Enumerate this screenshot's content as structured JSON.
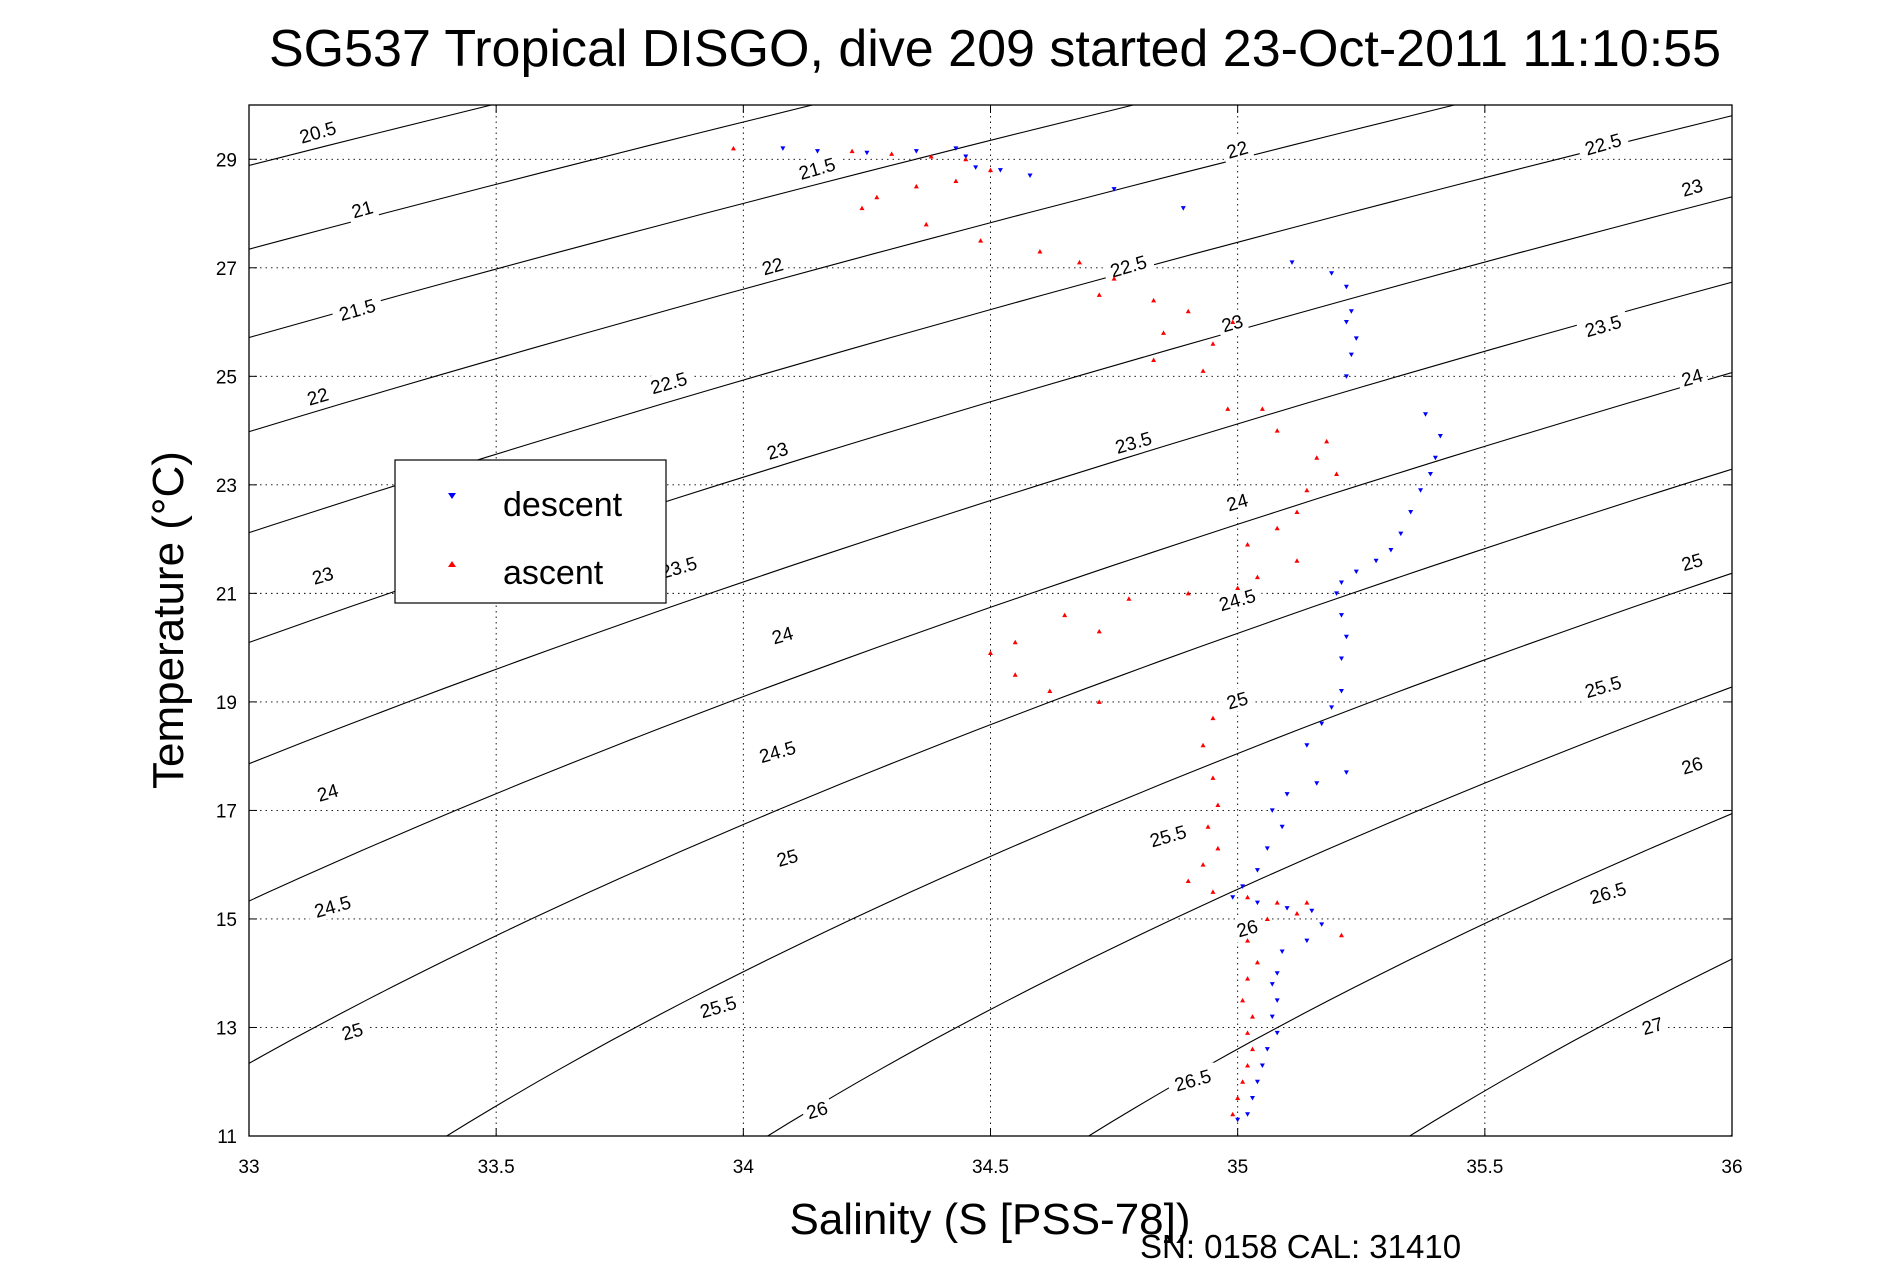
{
  "chart_data": {
    "type": "scatter",
    "title": "SG537 Tropical DISGO, dive 209 started 23-Oct-2011 11:10:55",
    "xlabel": "Salinity (S [PSS-78])",
    "ylabel": "Temperature (°C)",
    "xlim": [
      33,
      36
    ],
    "ylim": [
      11,
      30
    ],
    "x_ticks": [
      33,
      33.5,
      34,
      34.5,
      35,
      35.5,
      36
    ],
    "x_tick_labels": [
      "33",
      "33.5",
      "34",
      "34.5",
      "35",
      "35.5",
      "36"
    ],
    "y_ticks": [
      11,
      13,
      15,
      17,
      19,
      21,
      23,
      25,
      27,
      29
    ],
    "y_tick_labels": [
      "11",
      "13",
      "15",
      "17",
      "19",
      "21",
      "23",
      "25",
      "27",
      "29"
    ],
    "grid": true,
    "legend_position": "center-left",
    "footer": "SN: 0158  CAL: 31410",
    "density_contours": {
      "levels": [
        20.5,
        21,
        21.5,
        22,
        22.5,
        23,
        23.5,
        24,
        24.5,
        25,
        25.5,
        26,
        26.5,
        27
      ],
      "color": "#000000",
      "labels": [
        {
          "text": "20.5",
          "x": 33.14,
          "y": 29.47
        },
        {
          "text": "21",
          "x": 33.23,
          "y": 28.05
        },
        {
          "text": "21.5",
          "x": 33.22,
          "y": 26.2
        },
        {
          "text": "22",
          "x": 33.14,
          "y": 24.6
        },
        {
          "text": "23",
          "x": 33.15,
          "y": 21.3
        },
        {
          "text": "24",
          "x": 33.16,
          "y": 17.3
        },
        {
          "text": "24.5",
          "x": 33.17,
          "y": 15.2
        },
        {
          "text": "25",
          "x": 33.21,
          "y": 12.9
        },
        {
          "text": "21.5",
          "x": 34.15,
          "y": 28.8
        },
        {
          "text": "22",
          "x": 34.06,
          "y": 27.0
        },
        {
          "text": "22.5",
          "x": 33.85,
          "y": 24.85
        },
        {
          "text": "23",
          "x": 34.07,
          "y": 23.6
        },
        {
          "text": "23.5",
          "x": 33.87,
          "y": 21.45
        },
        {
          "text": "24",
          "x": 34.08,
          "y": 20.2
        },
        {
          "text": "24.5",
          "x": 34.07,
          "y": 18.05
        },
        {
          "text": "25",
          "x": 34.09,
          "y": 16.1
        },
        {
          "text": "25.5",
          "x": 33.95,
          "y": 13.35
        },
        {
          "text": "26",
          "x": 34.15,
          "y": 11.45
        },
        {
          "text": "22",
          "x": 35.0,
          "y": 29.15
        },
        {
          "text": "22.5",
          "x": 34.78,
          "y": 27.0
        },
        {
          "text": "23",
          "x": 34.99,
          "y": 25.95
        },
        {
          "text": "23.5",
          "x": 34.79,
          "y": 23.75
        },
        {
          "text": "24",
          "x": 35.0,
          "y": 22.65
        },
        {
          "text": "24.5",
          "x": 35.0,
          "y": 20.85
        },
        {
          "text": "25",
          "x": 35.0,
          "y": 19.0
        },
        {
          "text": "25.5",
          "x": 34.86,
          "y": 16.5
        },
        {
          "text": "26",
          "x": 35.02,
          "y": 14.8
        },
        {
          "text": "26.5",
          "x": 34.91,
          "y": 12.0
        },
        {
          "text": "22.5",
          "x": 35.74,
          "y": 29.25
        },
        {
          "text": "23",
          "x": 35.92,
          "y": 28.45
        },
        {
          "text": "23.5",
          "x": 35.74,
          "y": 25.9
        },
        {
          "text": "24",
          "x": 35.92,
          "y": 24.95
        },
        {
          "text": "25",
          "x": 35.92,
          "y": 21.55
        },
        {
          "text": "25.5",
          "x": 35.74,
          "y": 19.25
        },
        {
          "text": "26",
          "x": 35.92,
          "y": 17.8
        },
        {
          "text": "26.5",
          "x": 35.75,
          "y": 15.45
        },
        {
          "text": "27",
          "x": 35.84,
          "y": 13.0
        }
      ]
    },
    "series": [
      {
        "name": "descent",
        "color": "#0000ff",
        "marker": "triangle-down",
        "points": [
          [
            34.08,
            29.2
          ],
          [
            34.15,
            29.15
          ],
          [
            34.25,
            29.12
          ],
          [
            34.35,
            29.15
          ],
          [
            34.43,
            29.2
          ],
          [
            34.45,
            29.05
          ],
          [
            34.47,
            28.85
          ],
          [
            34.52,
            28.8
          ],
          [
            34.58,
            28.7
          ],
          [
            34.75,
            28.45
          ],
          [
            34.89,
            28.1
          ],
          [
            35.11,
            27.1
          ],
          [
            35.19,
            26.9
          ],
          [
            35.22,
            26.65
          ],
          [
            35.23,
            26.2
          ],
          [
            35.22,
            26.0
          ],
          [
            35.24,
            25.7
          ],
          [
            35.23,
            25.4
          ],
          [
            35.22,
            25.0
          ],
          [
            35.38,
            24.3
          ],
          [
            35.41,
            23.9
          ],
          [
            35.4,
            23.5
          ],
          [
            35.39,
            23.2
          ],
          [
            35.37,
            22.9
          ],
          [
            35.35,
            22.5
          ],
          [
            35.33,
            22.1
          ],
          [
            35.31,
            21.8
          ],
          [
            35.28,
            21.6
          ],
          [
            35.24,
            21.4
          ],
          [
            35.21,
            21.2
          ],
          [
            35.2,
            21.0
          ],
          [
            35.21,
            20.6
          ],
          [
            35.22,
            20.2
          ],
          [
            35.21,
            19.8
          ],
          [
            35.21,
            19.2
          ],
          [
            35.19,
            18.9
          ],
          [
            35.17,
            18.6
          ],
          [
            35.14,
            18.2
          ],
          [
            35.22,
            17.7
          ],
          [
            35.16,
            17.5
          ],
          [
            35.1,
            17.3
          ],
          [
            35.07,
            17.0
          ],
          [
            35.09,
            16.7
          ],
          [
            35.06,
            16.3
          ],
          [
            35.04,
            15.9
          ],
          [
            35.01,
            15.6
          ],
          [
            34.99,
            15.4
          ],
          [
            35.04,
            15.3
          ],
          [
            35.1,
            15.2
          ],
          [
            35.15,
            15.15
          ],
          [
            35.17,
            14.9
          ],
          [
            35.14,
            14.6
          ],
          [
            35.09,
            14.4
          ],
          [
            35.08,
            14.0
          ],
          [
            35.07,
            13.8
          ],
          [
            35.08,
            13.5
          ],
          [
            35.07,
            13.2
          ],
          [
            35.08,
            12.9
          ],
          [
            35.06,
            12.6
          ],
          [
            35.05,
            12.3
          ],
          [
            35.04,
            12.0
          ],
          [
            35.03,
            11.7
          ],
          [
            35.02,
            11.4
          ],
          [
            35.0,
            11.3
          ]
        ]
      },
      {
        "name": "ascent",
        "color": "#ff0000",
        "marker": "triangle-up",
        "points": [
          [
            33.98,
            29.2
          ],
          [
            34.22,
            29.15
          ],
          [
            34.3,
            29.1
          ],
          [
            34.38,
            29.05
          ],
          [
            34.45,
            29.0
          ],
          [
            34.5,
            28.8
          ],
          [
            34.43,
            28.6
          ],
          [
            34.35,
            28.5
          ],
          [
            34.27,
            28.3
          ],
          [
            34.24,
            28.1
          ],
          [
            34.37,
            27.8
          ],
          [
            34.48,
            27.5
          ],
          [
            34.6,
            27.3
          ],
          [
            34.68,
            27.1
          ],
          [
            34.75,
            26.8
          ],
          [
            34.72,
            26.5
          ],
          [
            34.83,
            26.4
          ],
          [
            34.9,
            26.2
          ],
          [
            34.99,
            26.0
          ],
          [
            34.85,
            25.8
          ],
          [
            34.95,
            25.6
          ],
          [
            34.83,
            25.3
          ],
          [
            34.93,
            25.1
          ],
          [
            34.98,
            24.4
          ],
          [
            35.05,
            24.4
          ],
          [
            35.08,
            24.0
          ],
          [
            35.18,
            23.8
          ],
          [
            35.16,
            23.5
          ],
          [
            35.2,
            23.2
          ],
          [
            35.14,
            22.9
          ],
          [
            35.12,
            22.5
          ],
          [
            35.08,
            22.2
          ],
          [
            35.02,
            21.9
          ],
          [
            35.12,
            21.6
          ],
          [
            35.04,
            21.3
          ],
          [
            35.0,
            21.1
          ],
          [
            34.9,
            21.0
          ],
          [
            34.78,
            20.9
          ],
          [
            34.65,
            20.6
          ],
          [
            34.72,
            20.3
          ],
          [
            34.55,
            20.1
          ],
          [
            34.5,
            19.9
          ],
          [
            34.55,
            19.5
          ],
          [
            34.62,
            19.2
          ],
          [
            34.72,
            19.0
          ],
          [
            34.95,
            18.7
          ],
          [
            34.93,
            18.2
          ],
          [
            34.95,
            17.6
          ],
          [
            34.96,
            17.1
          ],
          [
            34.94,
            16.7
          ],
          [
            34.96,
            16.3
          ],
          [
            34.93,
            16.0
          ],
          [
            34.9,
            15.7
          ],
          [
            34.95,
            15.5
          ],
          [
            35.02,
            15.4
          ],
          [
            35.08,
            15.3
          ],
          [
            35.12,
            15.1
          ],
          [
            35.14,
            15.3
          ],
          [
            35.06,
            15.0
          ],
          [
            35.02,
            14.6
          ],
          [
            35.04,
            14.2
          ],
          [
            35.02,
            13.9
          ],
          [
            35.01,
            13.5
          ],
          [
            35.03,
            13.2
          ],
          [
            35.02,
            12.9
          ],
          [
            35.03,
            12.6
          ],
          [
            35.02,
            12.3
          ],
          [
            35.01,
            12.0
          ],
          [
            35.0,
            11.7
          ],
          [
            34.99,
            11.4
          ],
          [
            35.21,
            14.7
          ]
        ]
      }
    ]
  }
}
